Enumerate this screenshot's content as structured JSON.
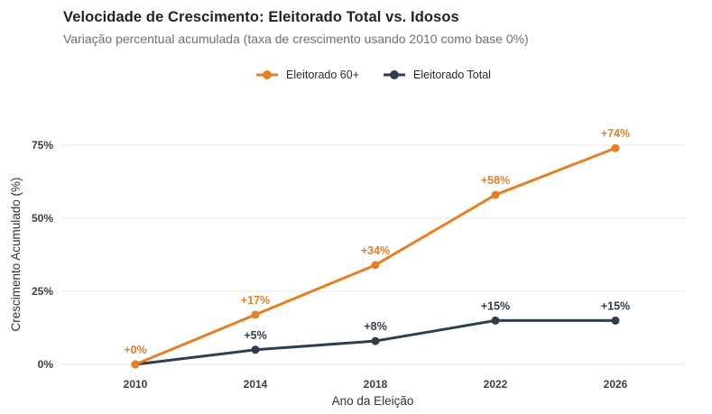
{
  "header": {
    "title": "Velocidade de Crescimento: Eleitorado Total vs. Idosos",
    "subtitle": "Variação percentual acumulada (taxa de crescimento usando 2010 como base 0%)"
  },
  "legend": {
    "items": [
      {
        "label": "Eleitorado 60+",
        "color": "#E67E22"
      },
      {
        "label": "Eleitorado Total",
        "color": "#2C3E50"
      }
    ]
  },
  "colors": {
    "grid": "#e8e8e8",
    "tick_text": "#3f3f3f",
    "axis_title_text": "#333333",
    "series_60plus": "#E67E22",
    "series_total": "#2C3E50"
  },
  "chart_data": {
    "type": "line",
    "title": "Velocidade de Crescimento: Eleitorado Total vs. Idosos",
    "subtitle": "Variação percentual acumulada (taxa de crescimento usando 2010 como base 0%)",
    "xlabel": "Ano da Eleição",
    "ylabel": "Crescimento Acumulado (%)",
    "x": [
      "2010",
      "2014",
      "2018",
      "2022",
      "2026"
    ],
    "series": [
      {
        "name": "Eleitorado 60+",
        "color": "#E67E22",
        "values": [
          0,
          17,
          34,
          58,
          74
        ],
        "point_labels": [
          "+0%",
          "+17%",
          "+34%",
          "+58%",
          "+74%"
        ]
      },
      {
        "name": "Eleitorado Total",
        "color": "#2C3E50",
        "values": [
          0,
          5,
          8,
          15,
          15
        ],
        "point_labels": [
          "",
          "+5%",
          "+8%",
          "+15%",
          "+15%"
        ]
      }
    ],
    "yticks": [
      0,
      25,
      50,
      75
    ],
    "ytick_labels": [
      "0%",
      "25%",
      "50%",
      "75%"
    ],
    "ylim": [
      0,
      81
    ],
    "grid": true,
    "legend_position": "top-center"
  }
}
